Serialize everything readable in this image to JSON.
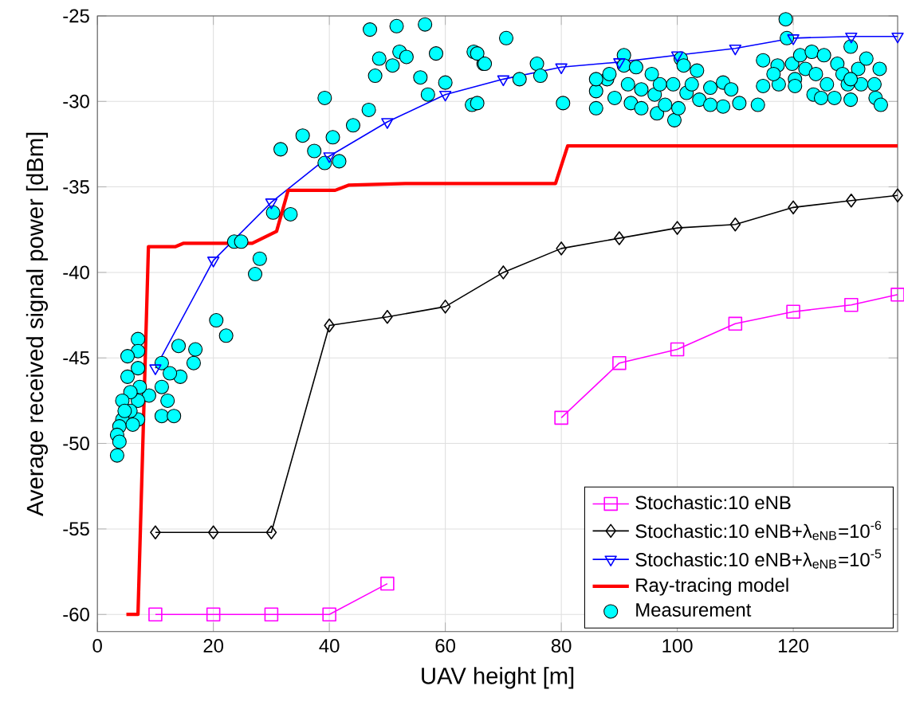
{
  "chart_data": {
    "type": "line",
    "xlabel": "UAV height [m]",
    "ylabel": "Average received signal power [dBm]",
    "xlim": [
      0,
      138
    ],
    "ylim": [
      -61,
      -25
    ],
    "xticks": [
      0,
      20,
      40,
      60,
      80,
      100,
      120
    ],
    "yticks": [
      -60,
      -55,
      -50,
      -45,
      -40,
      -35,
      -30,
      -25
    ],
    "grid": true,
    "legend": "bottom right",
    "line_style": "solid",
    "series": [
      {
        "name": "Stochastic:10 eNB",
        "marker": "square",
        "color": "#ff00ff",
        "x": [
          10,
          20,
          30,
          40,
          50,
          60,
          70,
          80,
          90,
          100,
          110,
          120,
          130,
          138
        ],
        "values": [
          -60,
          -60,
          -60,
          -60,
          -58.2,
          null,
          null,
          -48.5,
          -45.3,
          -44.5,
          -43.0,
          -42.3,
          -41.9,
          -41.3
        ]
      },
      {
        "name": "Stochastic:10 eNB+λ$_{eNB}$=10$^{-6}$",
        "marker": "diamond",
        "color": "#000000",
        "x": [
          10,
          20,
          30,
          40,
          50,
          60,
          70,
          80,
          90,
          100,
          110,
          120,
          130,
          138
        ],
        "values": [
          -55.2,
          -55.2,
          -55.2,
          -43.1,
          -42.6,
          -42.0,
          -40.0,
          -38.6,
          -38.0,
          -37.4,
          -37.2,
          -36.2,
          -35.8,
          -35.5
        ]
      },
      {
        "name": "Stochastic:10 eNB+λ$_{eNB}$=10$^{-5}$",
        "marker": "triangle",
        "color": "#0000ff",
        "x": [
          10,
          20,
          30,
          40,
          50,
          60,
          70,
          80,
          90,
          100,
          110,
          120,
          130,
          138
        ],
        "values": [
          -45.6,
          -39.3,
          -35.9,
          -33.2,
          -31.2,
          -29.6,
          -28.7,
          -28.0,
          -27.7,
          -27.3,
          -26.9,
          -26.3,
          -26.2,
          -26.2
        ]
      },
      {
        "name": "Ray-tracing model",
        "marker": "none",
        "color": "#ff0000",
        "x": [
          5,
          7,
          8.8,
          13.4,
          14.8,
          26.7,
          30.9,
          32.9,
          41,
          43.3,
          53.1,
          79,
          81.1,
          138
        ],
        "values": [
          -60,
          -60,
          -38.5,
          -38.5,
          -38.3,
          -38.3,
          -37.6,
          -35.2,
          -35.2,
          -34.9,
          -34.8,
          -34.8,
          -32.6,
          -32.6
        ]
      },
      {
        "name": "Measurement",
        "type": "scatter",
        "marker": "circle",
        "color": "#00ffff",
        "x": [
          47.0,
          51.6,
          56.5,
          48.6,
          52.1,
          50.9,
          53.3,
          58.4,
          47.9,
          55.7,
          57.0,
          60.0,
          64.6,
          64.9,
          66.6,
          39.2,
          46.8,
          44.1,
          40.6,
          35.4,
          37.4,
          31.6,
          39.2,
          41.7,
          30.3,
          33.3,
          23.6,
          24.8,
          28.0,
          27.2,
          20.5,
          22.2,
          14.0,
          16.9,
          16.6,
          14.3,
          11.1,
          12.5,
          11.1,
          12.1,
          11.1,
          13.2,
          8.9,
          7.0,
          7.0,
          7.0,
          7.3,
          7.0,
          7.0,
          5.2,
          5.2,
          5.7,
          5.7,
          4.3,
          4.3,
          3.8,
          3.4,
          3.8,
          3.4,
          6.1,
          4.7,
          70.5,
          65.5,
          66.8,
          72.8,
          75.8,
          76.4,
          65.5,
          80.3,
          86.0,
          86.0,
          87.9,
          89.2,
          90.8,
          90.8,
          92.9,
          91.5,
          92.0,
          93.8,
          93.8,
          96.1,
          97.0,
          96.5,
          97.9,
          99.3,
          99.5,
          100.2,
          100.6,
          101.1,
          101.6,
          102.5,
          103.4,
          103.8,
          105.7,
          107.9,
          107.9,
          109.3,
          110.7,
          113.9,
          114.8,
          114.8,
          117.3,
          117.5,
          118.7,
          118.9,
          119.8,
          120.3,
          120.3,
          121.2,
          122.1,
          123.2,
          123.5,
          123.9,
          125.3,
          125.8,
          127.1,
          127.6,
          128.5,
          129.4,
          129.9,
          129.9,
          131.2,
          131.7,
          132.6,
          134.0,
          134.2,
          134.9,
          135.1,
          86.0,
          88.3,
          95.6,
          105.7,
          116.6,
          124.8,
          129.9
        ],
        "values": [
          -25.8,
          -25.6,
          -25.5,
          -27.5,
          -27.1,
          -27.9,
          -27.4,
          -27.2,
          -28.5,
          -28.6,
          -29.6,
          -28.9,
          -30.2,
          -27.1,
          -27.8,
          -29.8,
          -30.5,
          -31.4,
          -32.1,
          -32.0,
          -32.9,
          -32.8,
          -33.6,
          -33.5,
          -36.5,
          -36.6,
          -38.2,
          -38.2,
          -39.2,
          -40.1,
          -42.8,
          -43.7,
          -44.3,
          -44.5,
          -45.3,
          -46.1,
          -45.3,
          -45.9,
          -46.7,
          -47.5,
          -48.4,
          -48.4,
          -47.2,
          -43.9,
          -44.6,
          -45.6,
          -46.7,
          -47.5,
          -48.6,
          -44.9,
          -46.1,
          -47.0,
          -48.1,
          -47.5,
          -48.6,
          -49.0,
          -49.5,
          -49.9,
          -50.7,
          -48.9,
          -48.1,
          -26.3,
          -27.2,
          -27.8,
          -28.7,
          -27.8,
          -28.5,
          -30.1,
          -30.1,
          -29.4,
          -30.4,
          -28.7,
          -29.8,
          -27.3,
          -27.9,
          -28.0,
          -29.0,
          -30.1,
          -30.4,
          -29.3,
          -29.6,
          -29.0,
          -30.7,
          -30.2,
          -29.0,
          -31.1,
          -30.4,
          -27.5,
          -27.9,
          -29.5,
          -29.0,
          -28.2,
          -29.9,
          -29.2,
          -28.9,
          -30.3,
          -29.3,
          -30.1,
          -30.2,
          -29.1,
          -27.6,
          -27.9,
          -29.0,
          -25.2,
          -26.3,
          -27.8,
          -28.7,
          -29.1,
          -27.3,
          -28.1,
          -27.1,
          -29.6,
          -28.4,
          -27.3,
          -29.0,
          -29.8,
          -27.8,
          -28.4,
          -29.0,
          -26.8,
          -29.9,
          -28.1,
          -29.0,
          -27.5,
          -29.0,
          -29.8,
          -28.1,
          -30.2,
          -28.7,
          -28.4,
          -28.4,
          -30.2,
          -28.4,
          -29.8,
          -28.7
        ]
      }
    ]
  }
}
